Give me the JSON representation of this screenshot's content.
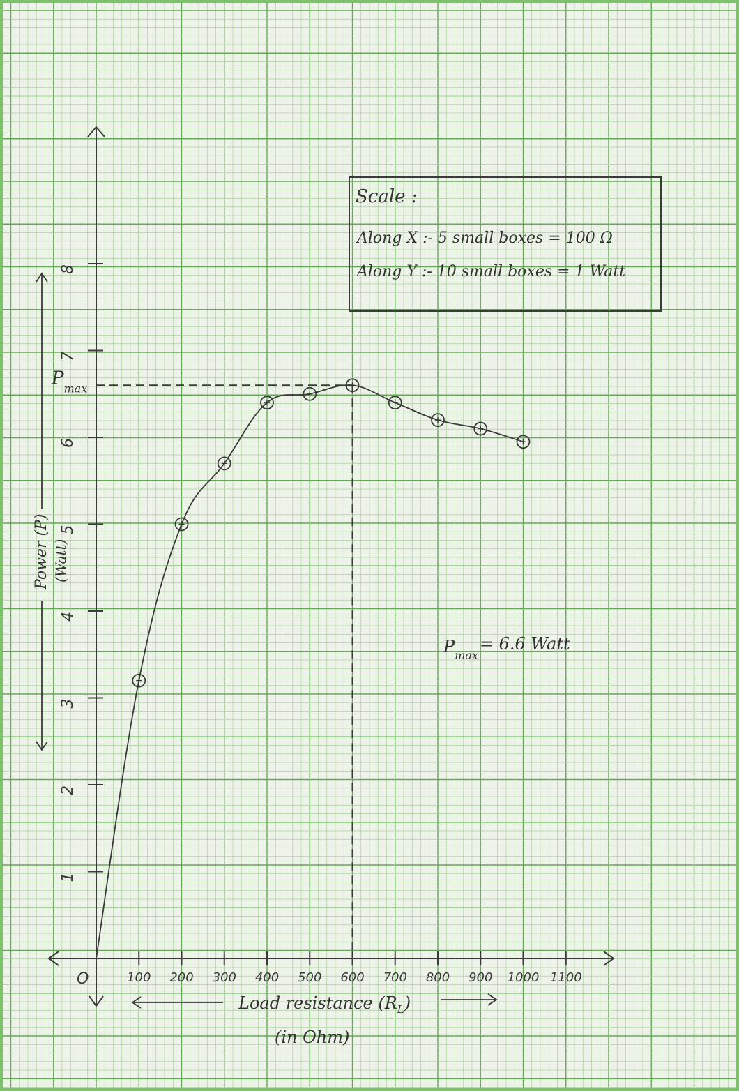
{
  "chart_data": {
    "type": "line",
    "title": "",
    "xlabel": "Load resistance (R",
    "xlabel_sub": "L",
    "xlabel_close": ")",
    "xunit": "(in Ohm)",
    "ylabel": "Power (P)",
    "yunit": "(Watt)",
    "origin_label": "O",
    "xlim": [
      0,
      1200
    ],
    "ylim": [
      0,
      9
    ],
    "x_ticks": [
      100,
      200,
      300,
      400,
      500,
      600,
      700,
      800,
      900,
      1000,
      1100
    ],
    "x_tick_labels": [
      "100",
      "200",
      "300",
      "400",
      "500",
      "600",
      "700",
      "800",
      "900",
      "1000",
      "1100"
    ],
    "y_ticks": [
      1,
      2,
      3,
      4,
      5,
      6,
      7,
      8
    ],
    "y_tick_labels": [
      "1",
      "2",
      "3",
      "4",
      "5",
      "6",
      "7",
      "8"
    ],
    "series": [
      {
        "x": [
          0,
          100,
          200,
          300,
          400,
          500,
          600,
          700,
          800,
          900,
          1000
        ],
        "y": [
          0,
          3.2,
          5.0,
          5.7,
          6.4,
          6.5,
          6.6,
          6.4,
          6.2,
          6.1,
          5.95
        ]
      }
    ],
    "pmax": {
      "x": 600,
      "y": 6.6,
      "label": "P",
      "sub": "max"
    },
    "annotation": {
      "text_main": "P",
      "text_sub": "max",
      "text_value": "= 6.6 Watt"
    },
    "scale_box": {
      "title": "Scale :",
      "line1": "Along X :- 5 small boxes = 100 Ω",
      "line2": "Along Y :- 10 small boxes = 1 Watt"
    },
    "grid": true
  },
  "colors": {
    "paper": "#eef3ea",
    "grid_minor": "#a9d19a",
    "grid_major": "#5fae4e",
    "ink": "#3a3a3a"
  }
}
